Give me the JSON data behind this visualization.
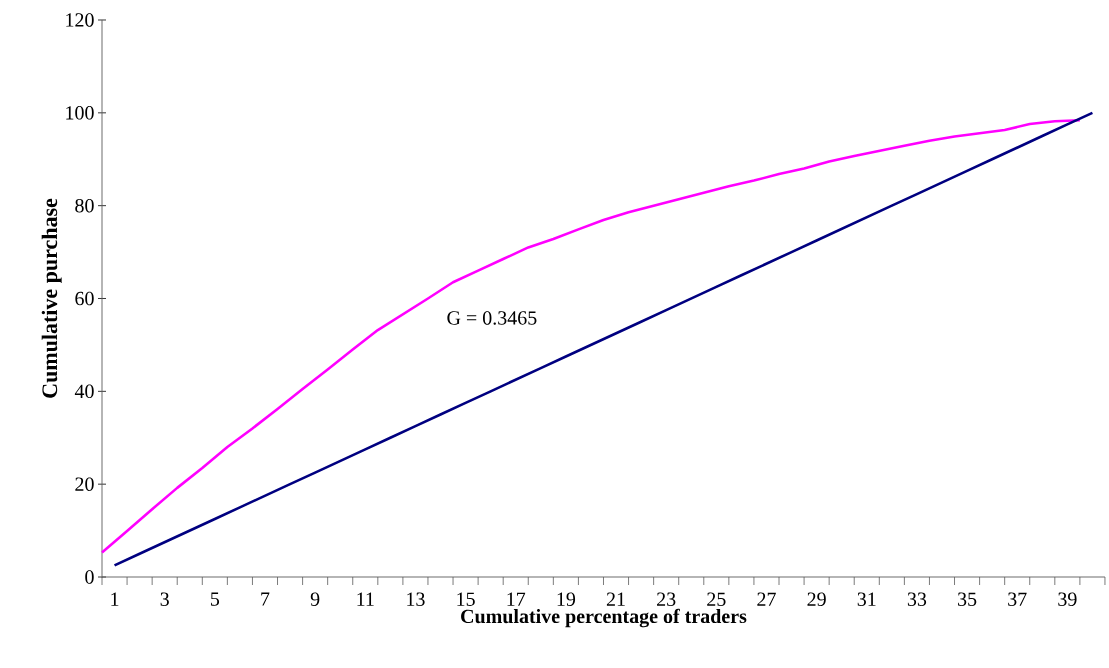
{
  "chart_data": {
    "type": "line",
    "xlabel": "Cumulative percentage of traders",
    "ylabel": "Cumulative purchase",
    "annotations": [
      "G = 0.3465"
    ],
    "xlim": [
      0.5,
      40.5
    ],
    "xticks": [
      {
        "value": 0.5,
        "label": null
      },
      1,
      {
        "value": 1.5,
        "label": null
      },
      {
        "value": 2.5,
        "label": null
      },
      3,
      {
        "value": 3.5,
        "label": null
      },
      {
        "value": 4.5,
        "label": null
      },
      5,
      {
        "value": 5.5,
        "label": null
      },
      {
        "value": 6.5,
        "label": null
      },
      7,
      {
        "value": 7.5,
        "label": null
      },
      {
        "value": 8.5,
        "label": null
      },
      9,
      {
        "value": 9.5,
        "label": null
      },
      {
        "value": 10.5,
        "label": null
      },
      11,
      {
        "value": 11.5,
        "label": null
      },
      {
        "value": 12.5,
        "label": null
      },
      13,
      {
        "value": 13.5,
        "label": null
      },
      {
        "value": 14.5,
        "label": null
      },
      15,
      {
        "value": 15.5,
        "label": null
      },
      {
        "value": 16.5,
        "label": null
      },
      17,
      {
        "value": 17.5,
        "label": null
      },
      {
        "value": 18.5,
        "label": null
      },
      19,
      {
        "value": 19.5,
        "label": null
      },
      {
        "value": 20.5,
        "label": null
      },
      21,
      {
        "value": 21.5,
        "label": null
      },
      {
        "value": 22.5,
        "label": null
      },
      23,
      {
        "value": 23.5,
        "label": null
      },
      {
        "value": 24.5,
        "label": null
      },
      25,
      {
        "value": 25.5,
        "label": null
      },
      {
        "value": 26.5,
        "label": null
      },
      27,
      {
        "value": 27.5,
        "label": null
      },
      {
        "value": 28.5,
        "label": null
      },
      29,
      {
        "value": 29.5,
        "label": null
      },
      {
        "value": 30.5,
        "label": null
      },
      31,
      {
        "value": 31.5,
        "label": null
      },
      {
        "value": 32.5,
        "label": null
      },
      33,
      {
        "value": 33.5,
        "label": null
      },
      {
        "value": 34.5,
        "label": null
      },
      35,
      {
        "value": 35.5,
        "label": null
      },
      {
        "value": 36.5,
        "label": null
      },
      37,
      {
        "value": 37.5,
        "label": null
      },
      {
        "value": 38.5,
        "label": null
      },
      39,
      {
        "value": 39.5,
        "label": null
      },
      {
        "value": 40.5,
        "label": null
      }
    ],
    "ylim": [
      0,
      120
    ],
    "yticks": [
      0,
      20,
      40,
      60,
      80,
      100,
      120
    ],
    "series": [
      {
        "color": "#ff00ff",
        "x": [
          0.5,
          1.5,
          2.5,
          3.5,
          4.5,
          5.5,
          6.5,
          7.5,
          8.5,
          9.5,
          10.5,
          11.5,
          12.5,
          13.5,
          14.5,
          15.5,
          16.5,
          17.5,
          18.5,
          19.5,
          20.5,
          21.5,
          22.5,
          23.5,
          24.5,
          25.5,
          26.5,
          27.5,
          28.5,
          29.5,
          30.5,
          31.5,
          32.5,
          33.5,
          34.5,
          35.5,
          36.5,
          37.5,
          38.5,
          39.5
        ],
        "values": [
          5.3,
          9.9,
          14.6,
          19.2,
          23.5,
          28.0,
          32.0,
          36.2,
          40.5,
          44.7,
          49.0,
          53.2,
          56.6,
          60.0,
          63.5,
          66.0,
          68.5,
          71.0,
          72.8,
          74.9,
          76.9,
          78.6,
          80.0,
          81.4,
          82.8,
          84.2,
          85.4,
          86.8,
          88.0,
          89.5,
          90.7,
          91.8,
          92.9,
          94.0,
          94.9,
          95.6,
          96.3,
          97.6,
          98.2,
          98.4
        ]
      },
      {
        "color": "#000080",
        "x": [
          1,
          2,
          3,
          4,
          5,
          6,
          7,
          8,
          9,
          10,
          11,
          12,
          13,
          14,
          15,
          16,
          17,
          18,
          19,
          20,
          21,
          22,
          23,
          24,
          25,
          26,
          27,
          28,
          29,
          30,
          31,
          32,
          33,
          34,
          35,
          36,
          37,
          38,
          39,
          40
        ],
        "values": [
          2.5,
          5,
          7.5,
          10,
          12.5,
          15,
          17.5,
          20,
          22.5,
          25,
          27.5,
          30,
          32.5,
          35,
          37.5,
          40,
          42.5,
          45,
          47.5,
          50,
          52.5,
          55,
          57.5,
          60,
          62.5,
          65,
          67.5,
          70,
          72.5,
          75,
          77.5,
          80,
          82.5,
          85,
          87.5,
          90,
          92.5,
          95,
          97.5,
          100
        ]
      }
    ]
  }
}
